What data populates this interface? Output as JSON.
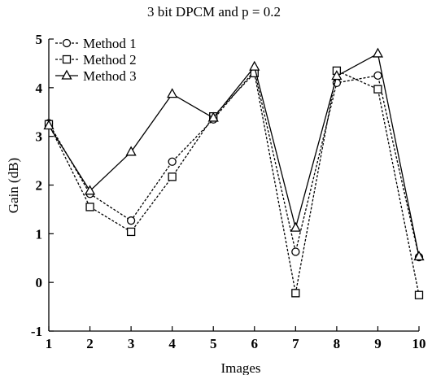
{
  "chart_data": {
    "type": "line",
    "title": "3 bit DPCM and p = 0.2",
    "xlabel": "Images",
    "ylabel": "Gain (dB)",
    "xlim": [
      1,
      10
    ],
    "ylim": [
      -1,
      5
    ],
    "x": [
      1,
      2,
      3,
      4,
      5,
      6,
      7,
      8,
      9,
      10
    ],
    "yticks": [
      -1,
      0,
      1,
      2,
      3,
      4,
      5
    ],
    "xticks": [
      1,
      2,
      3,
      4,
      5,
      6,
      7,
      8,
      9,
      10
    ],
    "grid": false,
    "legend_position": "top-left",
    "series": [
      {
        "name": "Method 1",
        "marker": "circle",
        "line": "dashed",
        "values": [
          3.27,
          1.82,
          1.27,
          2.48,
          3.35,
          4.35,
          0.63,
          4.1,
          4.25,
          0.52
        ]
      },
      {
        "name": "Method 2",
        "marker": "square",
        "line": "dashed",
        "values": [
          3.25,
          1.55,
          1.04,
          2.17,
          3.41,
          4.3,
          -0.22,
          4.35,
          3.97,
          -0.26
        ]
      },
      {
        "name": "Method 3",
        "marker": "triangle",
        "line": "solid",
        "values": [
          3.22,
          1.88,
          2.68,
          3.87,
          3.38,
          4.43,
          1.12,
          4.24,
          4.7,
          0.53
        ]
      }
    ]
  }
}
